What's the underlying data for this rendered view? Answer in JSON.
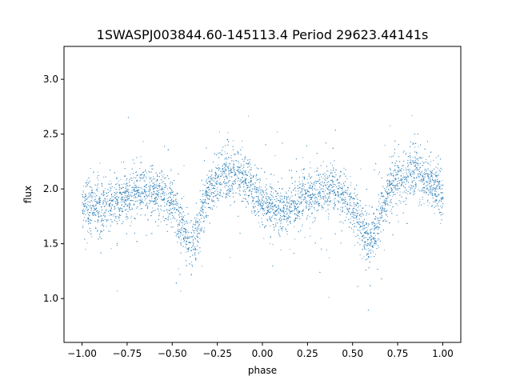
{
  "chart_data": {
    "type": "scatter",
    "title": "1SWASPJ003844.60-145113.4 Period 29623.44141s",
    "xlabel": "phase",
    "ylabel": "flux",
    "xlim": [
      -1.1,
      1.1
    ],
    "ylim": [
      0.6,
      3.3
    ],
    "xticks": [
      -1.0,
      -0.75,
      -0.5,
      -0.25,
      0.0,
      0.25,
      0.5,
      0.75,
      1.0
    ],
    "xtick_labels": [
      "−1.00",
      "−0.75",
      "−0.50",
      "−0.25",
      "0.00",
      "0.25",
      "0.50",
      "0.75",
      "1.00"
    ],
    "yticks": [
      1.0,
      1.5,
      2.0,
      2.5,
      3.0
    ],
    "ytick_labels": [
      "1.0",
      "1.5",
      "2.0",
      "2.5",
      "3.0"
    ],
    "grid": false,
    "legend": "none",
    "point_color": "#1f77b4",
    "series": [
      {
        "x": [
          -1.0,
          -0.95,
          -0.9,
          -0.85,
          -0.8,
          -0.75,
          -0.7,
          -0.65,
          -0.6,
          -0.55,
          -0.5,
          -0.475,
          -0.45,
          -0.425,
          -0.4,
          -0.375,
          -0.35,
          -0.325,
          -0.3,
          -0.25,
          -0.2,
          -0.15,
          -0.1,
          -0.05,
          0.0,
          0.05,
          0.1,
          0.15,
          0.2,
          0.25,
          0.3,
          0.35,
          0.4,
          0.45,
          0.5,
          0.525,
          0.55,
          0.575,
          0.6,
          0.625,
          0.65,
          0.675,
          0.7,
          0.75,
          0.8,
          0.85,
          0.9,
          0.95,
          1.0
        ],
        "y": [
          1.87,
          1.83,
          1.83,
          1.85,
          1.9,
          1.95,
          1.98,
          2.0,
          1.99,
          1.96,
          1.87,
          1.78,
          1.66,
          1.54,
          1.51,
          1.58,
          1.7,
          1.85,
          1.97,
          2.09,
          2.15,
          2.14,
          2.09,
          1.98,
          1.9,
          1.83,
          1.79,
          1.83,
          1.88,
          1.93,
          1.98,
          2.0,
          1.99,
          1.95,
          1.85,
          1.76,
          1.65,
          1.57,
          1.55,
          1.61,
          1.74,
          1.88,
          1.99,
          2.09,
          2.15,
          2.14,
          2.09,
          2.03,
          1.9
        ]
      }
    ]
  }
}
